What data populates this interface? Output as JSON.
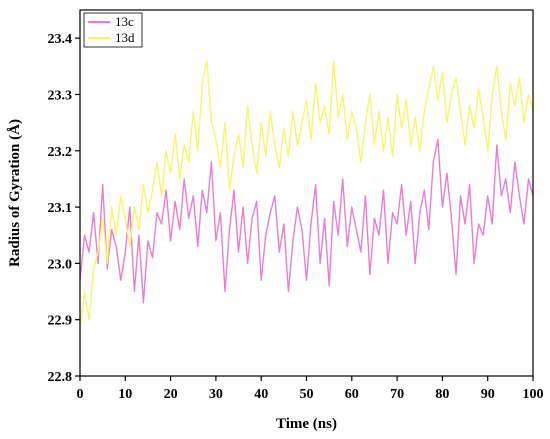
{
  "chart_data": {
    "type": "line",
    "xlabel": "Time (ns)",
    "ylabel": "Radius of Gyration (Å)",
    "xlim": [
      0,
      100
    ],
    "ylim": [
      22.8,
      23.45
    ],
    "xticks": [
      0,
      10,
      20,
      30,
      40,
      50,
      60,
      70,
      80,
      90,
      100
    ],
    "yticks": [
      22.8,
      22.9,
      23.0,
      23.1,
      23.2,
      23.3,
      23.4
    ],
    "grid": false,
    "legend_position": "top-left",
    "series": [
      {
        "name": "13c",
        "color": "#e87ed0",
        "x": [
          0,
          1,
          2,
          3,
          4,
          5,
          6,
          7,
          8,
          9,
          10,
          11,
          12,
          13,
          14,
          15,
          16,
          17,
          18,
          19,
          20,
          21,
          22,
          23,
          24,
          25,
          26,
          27,
          28,
          29,
          30,
          31,
          32,
          33,
          34,
          35,
          36,
          37,
          38,
          39,
          40,
          41,
          42,
          43,
          44,
          45,
          46,
          47,
          48,
          49,
          50,
          51,
          52,
          53,
          54,
          55,
          56,
          57,
          58,
          59,
          60,
          61,
          62,
          63,
          64,
          65,
          66,
          67,
          68,
          69,
          70,
          71,
          72,
          73,
          74,
          75,
          76,
          77,
          78,
          79,
          80,
          81,
          82,
          83,
          84,
          85,
          86,
          87,
          88,
          89,
          90,
          91,
          92,
          93,
          94,
          95,
          96,
          97,
          98,
          99,
          100
        ],
        "values": [
          22.97,
          23.05,
          23.02,
          23.09,
          23.0,
          23.14,
          22.99,
          23.06,
          23.03,
          22.97,
          23.02,
          23.1,
          22.95,
          23.05,
          22.93,
          23.04,
          23.01,
          23.09,
          23.07,
          23.13,
          23.04,
          23.11,
          23.06,
          23.15,
          23.08,
          23.12,
          23.03,
          23.13,
          23.09,
          23.18,
          23.04,
          23.09,
          22.95,
          23.06,
          23.13,
          23.02,
          23.1,
          23.0,
          23.08,
          23.11,
          22.97,
          23.05,
          23.09,
          23.12,
          23.02,
          23.07,
          22.95,
          23.04,
          23.1,
          23.06,
          22.97,
          23.07,
          23.14,
          23.0,
          23.08,
          22.96,
          23.11,
          23.05,
          23.15,
          23.03,
          23.1,
          23.06,
          23.02,
          23.12,
          22.98,
          23.08,
          23.05,
          23.13,
          23.0,
          23.09,
          23.07,
          23.14,
          23.05,
          23.11,
          23.0,
          23.09,
          23.13,
          23.06,
          23.18,
          23.22,
          23.1,
          23.16,
          23.08,
          22.98,
          23.12,
          23.07,
          23.14,
          23.0,
          23.07,
          23.05,
          23.12,
          23.07,
          23.21,
          23.12,
          23.15,
          23.09,
          23.18,
          23.12,
          23.07,
          23.15,
          23.12
        ]
      },
      {
        "name": "13d",
        "color": "#f7f56c",
        "x": [
          0,
          1,
          2,
          3,
          4,
          5,
          6,
          7,
          8,
          9,
          10,
          11,
          12,
          13,
          14,
          15,
          16,
          17,
          18,
          19,
          20,
          21,
          22,
          23,
          24,
          25,
          26,
          27,
          28,
          29,
          30,
          31,
          32,
          33,
          34,
          35,
          36,
          37,
          38,
          39,
          40,
          41,
          42,
          43,
          44,
          45,
          46,
          47,
          48,
          49,
          50,
          51,
          52,
          53,
          54,
          55,
          56,
          57,
          58,
          59,
          60,
          61,
          62,
          63,
          64,
          65,
          66,
          67,
          68,
          69,
          70,
          71,
          72,
          73,
          74,
          75,
          76,
          77,
          78,
          79,
          80,
          81,
          82,
          83,
          84,
          85,
          86,
          87,
          88,
          89,
          90,
          91,
          92,
          93,
          94,
          95,
          96,
          97,
          98,
          99,
          100
        ],
        "values": [
          22.88,
          22.95,
          22.9,
          22.99,
          23.02,
          23.08,
          23.0,
          23.1,
          23.05,
          23.12,
          23.08,
          23.03,
          23.1,
          23.06,
          23.14,
          23.09,
          23.13,
          23.18,
          23.12,
          23.2,
          23.16,
          23.23,
          23.15,
          23.21,
          23.18,
          23.27,
          23.2,
          23.32,
          23.36,
          23.25,
          23.22,
          23.17,
          23.25,
          23.13,
          23.19,
          23.23,
          23.17,
          23.28,
          23.21,
          23.16,
          23.25,
          23.19,
          23.27,
          23.21,
          23.17,
          23.24,
          23.19,
          23.27,
          23.21,
          23.25,
          23.29,
          23.22,
          23.32,
          23.25,
          23.28,
          23.23,
          23.36,
          23.26,
          23.3,
          23.22,
          23.27,
          23.24,
          23.18,
          23.25,
          23.3,
          23.21,
          23.27,
          23.2,
          23.26,
          23.19,
          23.3,
          23.24,
          23.29,
          23.21,
          23.26,
          23.2,
          23.27,
          23.31,
          23.35,
          23.29,
          23.34,
          23.25,
          23.3,
          23.33,
          23.27,
          23.21,
          23.28,
          23.24,
          23.31,
          23.26,
          23.2,
          23.3,
          23.35,
          23.27,
          23.22,
          23.32,
          23.28,
          23.33,
          23.25,
          23.3,
          23.27
        ]
      }
    ]
  }
}
